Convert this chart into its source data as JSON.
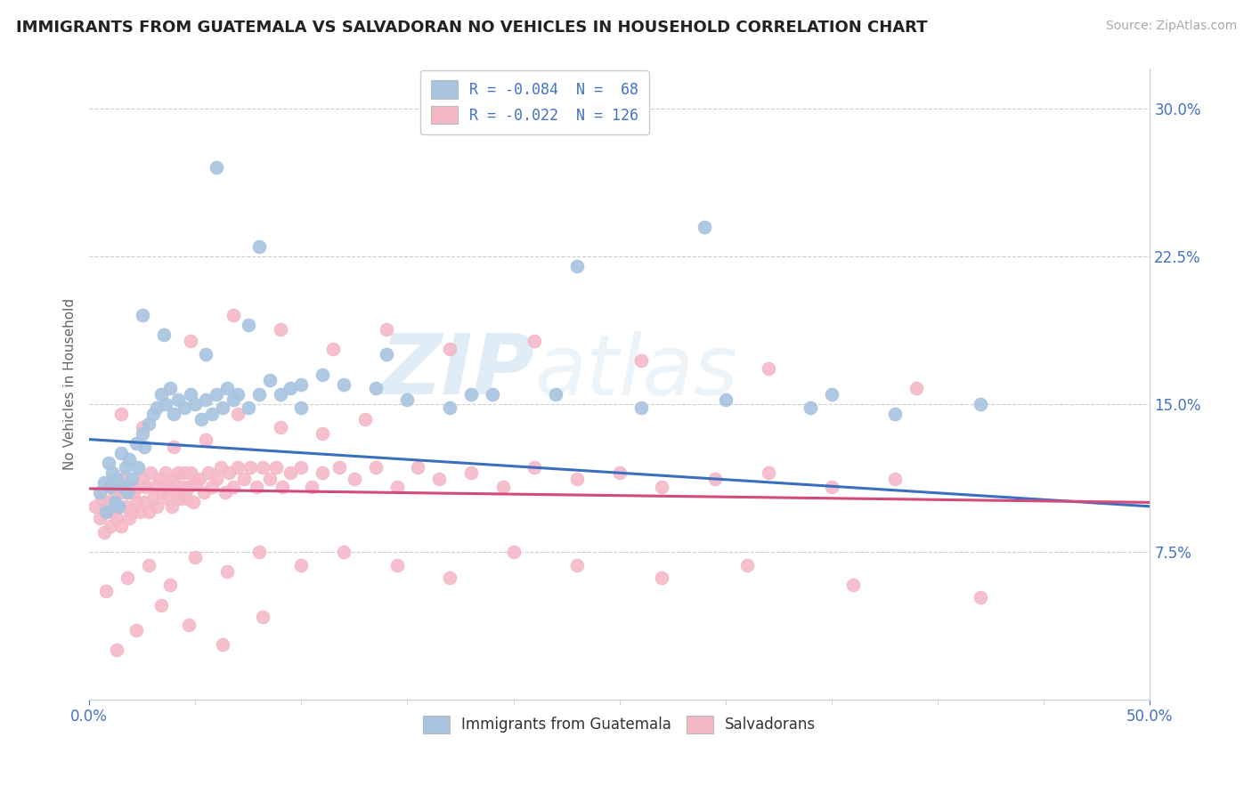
{
  "title": "IMMIGRANTS FROM GUATEMALA VS SALVADORAN NO VEHICLES IN HOUSEHOLD CORRELATION CHART",
  "source": "Source: ZipAtlas.com",
  "ylabel": "No Vehicles in Household",
  "ytick_vals": [
    0.075,
    0.15,
    0.225,
    0.3
  ],
  "ytick_labels": [
    "7.5%",
    "15.0%",
    "22.5%",
    "30.0%"
  ],
  "legend_blue_label": "R = -0.084  N =  68",
  "legend_pink_label": "R = -0.022  N = 126",
  "blue_color": "#a8c4e0",
  "pink_color": "#f4b8c8",
  "blue_line_color": "#3a6fbe",
  "pink_line_color": "#d44a7a",
  "watermark_text": "ZIPAtlas",
  "watermark_color": "#d8e8f5",
  "xmin": 0.0,
  "xmax": 0.5,
  "ymin": 0.0,
  "ymax": 0.32,
  "blue_regression_x0": 0.0,
  "blue_regression_y0": 0.132,
  "blue_regression_x1": 0.5,
  "blue_regression_y1": 0.098,
  "pink_regression_x0": 0.0,
  "pink_regression_y0": 0.107,
  "pink_regression_x1": 0.5,
  "pink_regression_y1": 0.1,
  "blue_scatter_x": [
    0.005,
    0.007,
    0.008,
    0.009,
    0.01,
    0.011,
    0.012,
    0.013,
    0.014,
    0.015,
    0.016,
    0.017,
    0.018,
    0.019,
    0.02,
    0.022,
    0.023,
    0.025,
    0.026,
    0.028,
    0.03,
    0.032,
    0.034,
    0.036,
    0.038,
    0.04,
    0.042,
    0.045,
    0.048,
    0.05,
    0.053,
    0.055,
    0.058,
    0.06,
    0.063,
    0.065,
    0.068,
    0.07,
    0.075,
    0.08,
    0.085,
    0.09,
    0.095,
    0.1,
    0.11,
    0.12,
    0.135,
    0.15,
    0.17,
    0.19,
    0.22,
    0.26,
    0.3,
    0.34,
    0.38,
    0.025,
    0.035,
    0.055,
    0.075,
    0.1,
    0.14,
    0.18,
    0.23,
    0.29,
    0.35,
    0.42,
    0.06,
    0.08
  ],
  "blue_scatter_y": [
    0.105,
    0.11,
    0.095,
    0.12,
    0.108,
    0.115,
    0.1,
    0.112,
    0.098,
    0.125,
    0.108,
    0.118,
    0.105,
    0.122,
    0.112,
    0.13,
    0.118,
    0.135,
    0.128,
    0.14,
    0.145,
    0.148,
    0.155,
    0.15,
    0.158,
    0.145,
    0.152,
    0.148,
    0.155,
    0.15,
    0.142,
    0.152,
    0.145,
    0.155,
    0.148,
    0.158,
    0.152,
    0.155,
    0.148,
    0.155,
    0.162,
    0.155,
    0.158,
    0.148,
    0.165,
    0.16,
    0.158,
    0.152,
    0.148,
    0.155,
    0.155,
    0.148,
    0.152,
    0.148,
    0.145,
    0.195,
    0.185,
    0.175,
    0.19,
    0.16,
    0.175,
    0.155,
    0.22,
    0.24,
    0.155,
    0.15,
    0.27,
    0.23
  ],
  "pink_scatter_x": [
    0.003,
    0.005,
    0.006,
    0.007,
    0.008,
    0.009,
    0.01,
    0.01,
    0.011,
    0.012,
    0.013,
    0.014,
    0.015,
    0.015,
    0.016,
    0.017,
    0.018,
    0.019,
    0.02,
    0.02,
    0.021,
    0.022,
    0.023,
    0.024,
    0.025,
    0.026,
    0.027,
    0.028,
    0.029,
    0.03,
    0.031,
    0.032,
    0.033,
    0.034,
    0.035,
    0.036,
    0.037,
    0.038,
    0.039,
    0.04,
    0.041,
    0.042,
    0.043,
    0.044,
    0.045,
    0.046,
    0.047,
    0.048,
    0.049,
    0.05,
    0.052,
    0.054,
    0.056,
    0.058,
    0.06,
    0.062,
    0.064,
    0.066,
    0.068,
    0.07,
    0.073,
    0.076,
    0.079,
    0.082,
    0.085,
    0.088,
    0.091,
    0.095,
    0.1,
    0.105,
    0.11,
    0.118,
    0.125,
    0.135,
    0.145,
    0.155,
    0.165,
    0.18,
    0.195,
    0.21,
    0.23,
    0.25,
    0.27,
    0.295,
    0.32,
    0.35,
    0.38,
    0.015,
    0.025,
    0.04,
    0.055,
    0.07,
    0.09,
    0.11,
    0.13,
    0.008,
    0.018,
    0.028,
    0.038,
    0.05,
    0.065,
    0.08,
    0.1,
    0.12,
    0.145,
    0.17,
    0.2,
    0.23,
    0.27,
    0.31,
    0.36,
    0.42,
    0.048,
    0.068,
    0.09,
    0.115,
    0.14,
    0.17,
    0.21,
    0.26,
    0.32,
    0.39,
    0.013,
    0.022,
    0.034,
    0.047,
    0.063,
    0.082
  ],
  "pink_scatter_y": [
    0.098,
    0.092,
    0.102,
    0.085,
    0.095,
    0.1,
    0.088,
    0.108,
    0.095,
    0.105,
    0.092,
    0.098,
    0.105,
    0.088,
    0.112,
    0.098,
    0.105,
    0.092,
    0.108,
    0.095,
    0.105,
    0.1,
    0.108,
    0.095,
    0.112,
    0.1,
    0.108,
    0.095,
    0.115,
    0.102,
    0.108,
    0.098,
    0.112,
    0.105,
    0.108,
    0.115,
    0.102,
    0.108,
    0.098,
    0.112,
    0.105,
    0.115,
    0.102,
    0.108,
    0.115,
    0.102,
    0.108,
    0.115,
    0.1,
    0.11,
    0.112,
    0.105,
    0.115,
    0.108,
    0.112,
    0.118,
    0.105,
    0.115,
    0.108,
    0.118,
    0.112,
    0.118,
    0.108,
    0.118,
    0.112,
    0.118,
    0.108,
    0.115,
    0.118,
    0.108,
    0.115,
    0.118,
    0.112,
    0.118,
    0.108,
    0.118,
    0.112,
    0.115,
    0.108,
    0.118,
    0.112,
    0.115,
    0.108,
    0.112,
    0.115,
    0.108,
    0.112,
    0.145,
    0.138,
    0.128,
    0.132,
    0.145,
    0.138,
    0.135,
    0.142,
    0.055,
    0.062,
    0.068,
    0.058,
    0.072,
    0.065,
    0.075,
    0.068,
    0.075,
    0.068,
    0.062,
    0.075,
    0.068,
    0.062,
    0.068,
    0.058,
    0.052,
    0.182,
    0.195,
    0.188,
    0.178,
    0.188,
    0.178,
    0.182,
    0.172,
    0.168,
    0.158,
    0.025,
    0.035,
    0.048,
    0.038,
    0.028,
    0.042
  ],
  "title_fontsize": 13,
  "source_fontsize": 10,
  "tick_label_color": "#4472c4",
  "ylabel_color": "#666666",
  "ylabel_fontsize": 11,
  "legend_fontsize": 12,
  "grid_color": "#cccccc",
  "spine_color": "#cccccc"
}
